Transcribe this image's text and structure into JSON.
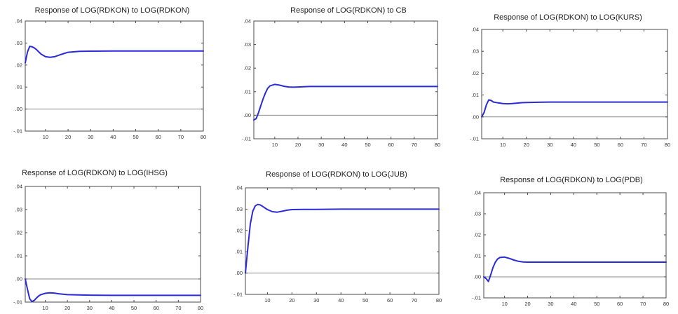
{
  "chart_data": [
    {
      "type": "line",
      "title": "Response of LOG(RDKON) to LOG(RDKON)",
      "xlim": [
        1,
        80
      ],
      "ylim": [
        -0.01,
        0.04
      ],
      "xticks": [
        10,
        20,
        30,
        40,
        50,
        60,
        70,
        80
      ],
      "yticks": [
        -0.01,
        0.0,
        0.01,
        0.02,
        0.03,
        0.04
      ],
      "yticklabels": [
        "-.01",
        ".00",
        ".01",
        ".02",
        ".03",
        ".04"
      ],
      "series": [
        {
          "x": [
            1,
            2,
            3,
            4,
            5,
            6,
            7,
            8,
            10,
            12,
            14,
            16,
            18,
            20,
            25,
            30,
            40,
            50,
            60,
            70,
            80
          ],
          "y": [
            0.021,
            0.026,
            0.0285,
            0.0283,
            0.0278,
            0.027,
            0.026,
            0.025,
            0.0238,
            0.0235,
            0.0238,
            0.0245,
            0.0252,
            0.0258,
            0.0262,
            0.0263,
            0.0264,
            0.0264,
            0.0264,
            0.0264,
            0.0264
          ]
        }
      ]
    },
    {
      "type": "line",
      "title": "Response of LOG(RDKON) to CB",
      "xlim": [
        1,
        80
      ],
      "ylim": [
        -0.01,
        0.04
      ],
      "xticks": [
        10,
        20,
        30,
        40,
        50,
        60,
        70,
        80
      ],
      "yticks": [
        -0.01,
        0.0,
        0.01,
        0.02,
        0.03,
        0.04
      ],
      "yticklabels": [
        "-.01",
        ".00",
        ".01",
        ".02",
        ".03",
        ".04"
      ],
      "series": [
        {
          "x": [
            1,
            2,
            3,
            4,
            5,
            6,
            7,
            8,
            10,
            12,
            14,
            16,
            18,
            20,
            25,
            30,
            40,
            50,
            60,
            70,
            80
          ],
          "y": [
            -0.002,
            -0.0015,
            0.001,
            0.004,
            0.007,
            0.0095,
            0.0115,
            0.0125,
            0.0131,
            0.0128,
            0.0123,
            0.012,
            0.0119,
            0.012,
            0.0122,
            0.0122,
            0.0122,
            0.0122,
            0.0122,
            0.0122,
            0.0122
          ]
        }
      ]
    },
    {
      "type": "line",
      "title": "Response of LOG(RDKON) to LOG(KURS)",
      "xlim": [
        1,
        80
      ],
      "ylim": [
        -0.01,
        0.04
      ],
      "xticks": [
        10,
        20,
        30,
        40,
        50,
        60,
        70,
        80
      ],
      "yticks": [
        -0.01,
        0.0,
        0.01,
        0.02,
        0.03,
        0.04
      ],
      "yticklabels": [
        "-.01",
        ".00",
        ".01",
        ".02",
        ".03",
        ".04"
      ],
      "series": [
        {
          "x": [
            1,
            2,
            3,
            4,
            5,
            6,
            7,
            8,
            10,
            12,
            14,
            16,
            18,
            20,
            25,
            30,
            40,
            50,
            60,
            70,
            80
          ],
          "y": [
            0.0,
            0.002,
            0.0055,
            0.0078,
            0.0075,
            0.0068,
            0.0066,
            0.0064,
            0.0061,
            0.006,
            0.0061,
            0.0063,
            0.0065,
            0.0066,
            0.0067,
            0.0068,
            0.0068,
            0.0068,
            0.0068,
            0.0068,
            0.0068
          ]
        }
      ]
    },
    {
      "type": "line",
      "title": "Response of LOG(RDKON) to LOG(IHSG)",
      "xlim": [
        1,
        80
      ],
      "ylim": [
        -0.01,
        0.04
      ],
      "xticks": [
        10,
        20,
        30,
        40,
        50,
        60,
        70,
        80
      ],
      "yticks": [
        -0.01,
        0.0,
        0.01,
        0.02,
        0.03,
        0.04
      ],
      "yticklabels": [
        "-.01",
        ".00",
        ".01",
        ".02",
        ".03",
        ".04"
      ],
      "series": [
        {
          "x": [
            1,
            2,
            3,
            4,
            5,
            6,
            7,
            8,
            10,
            12,
            14,
            16,
            18,
            20,
            25,
            30,
            40,
            50,
            60,
            70,
            80
          ],
          "y": [
            0.0,
            -0.0045,
            -0.0085,
            -0.0098,
            -0.0093,
            -0.0083,
            -0.0074,
            -0.0068,
            -0.0062,
            -0.006,
            -0.0061,
            -0.0064,
            -0.0066,
            -0.0068,
            -0.0069,
            -0.007,
            -0.0071,
            -0.0071,
            -0.0071,
            -0.0071,
            -0.0071
          ]
        }
      ]
    },
    {
      "type": "line",
      "title": "Response of LOG(RDKON) to LOG(JUB)",
      "xlim": [
        1,
        80
      ],
      "ylim": [
        -0.01,
        0.04
      ],
      "xticks": [
        10,
        20,
        30,
        40,
        50,
        60,
        70,
        80
      ],
      "yticks": [
        -0.01,
        0.0,
        0.01,
        0.02,
        0.03,
        0.04
      ],
      "yticklabels": [
        "-.01",
        ".00",
        ".01",
        ".02",
        ".03",
        ".04"
      ],
      "series": [
        {
          "x": [
            1,
            2,
            3,
            4,
            5,
            6,
            7,
            8,
            10,
            12,
            14,
            16,
            18,
            20,
            25,
            30,
            40,
            50,
            60,
            70,
            80
          ],
          "y": [
            0.0,
            0.012,
            0.023,
            0.029,
            0.0315,
            0.0322,
            0.032,
            0.0313,
            0.0298,
            0.0288,
            0.0286,
            0.029,
            0.0295,
            0.0298,
            0.0299,
            0.0299,
            0.03,
            0.03,
            0.03,
            0.03,
            0.03
          ]
        }
      ]
    },
    {
      "type": "line",
      "title": "Response of LOG(RDKON) to LOG(PDB)",
      "xlim": [
        1,
        80
      ],
      "ylim": [
        -0.01,
        0.04
      ],
      "xticks": [
        10,
        20,
        30,
        40,
        50,
        60,
        70,
        80
      ],
      "yticks": [
        -0.01,
        0.0,
        0.01,
        0.02,
        0.03,
        0.04
      ],
      "yticklabels": [
        "-.01",
        ".00",
        ".01",
        ".02",
        ".03",
        ".04"
      ],
      "series": [
        {
          "x": [
            1,
            2,
            3,
            4,
            5,
            6,
            7,
            8,
            10,
            12,
            14,
            16,
            18,
            20,
            25,
            30,
            40,
            50,
            60,
            70,
            80
          ],
          "y": [
            0.0,
            -0.0008,
            -0.0022,
            0.001,
            0.0045,
            0.007,
            0.0085,
            0.0092,
            0.0094,
            0.0088,
            0.008,
            0.0074,
            0.0071,
            0.007,
            0.007,
            0.007,
            0.007,
            0.007,
            0.007,
            0.007,
            0.007
          ]
        }
      ]
    }
  ],
  "style": {
    "line_color": "#2a2ad8",
    "zero_line_color": "#8a8a8a",
    "frame_color": "#4a4a4a"
  }
}
